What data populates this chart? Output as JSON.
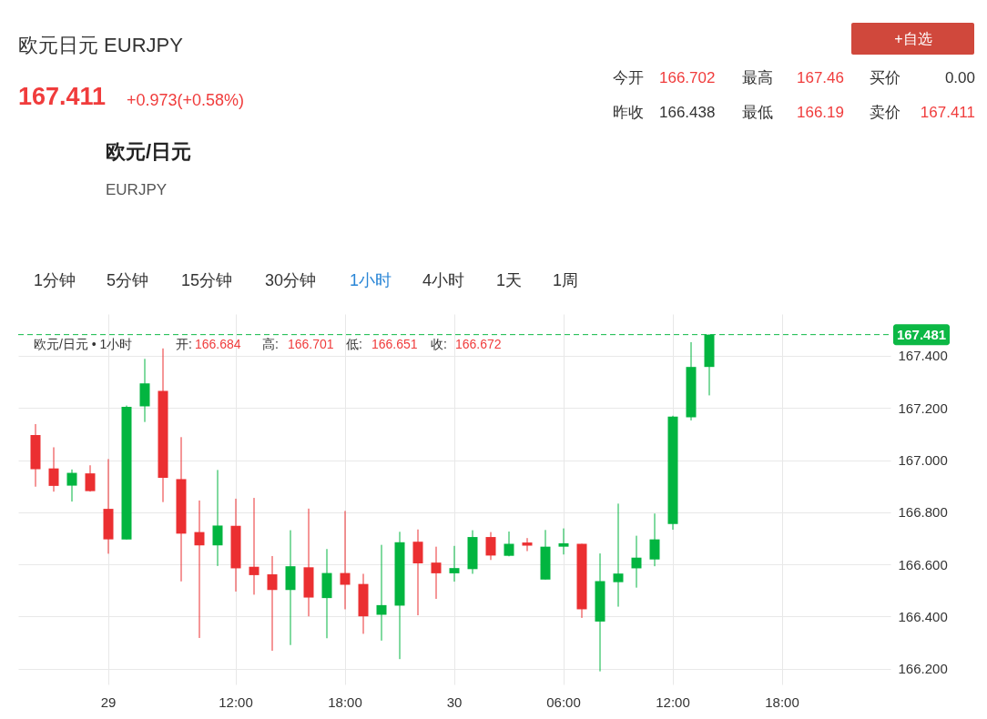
{
  "chart_data": {
    "type": "candlestick",
    "title": "欧元日元 EURJPY",
    "categories": [
      null,
      null,
      null,
      null,
      "29",
      null,
      null,
      null,
      null,
      null,
      null,
      "12:00",
      null,
      null,
      null,
      null,
      null,
      "18:00",
      null,
      null,
      null,
      null,
      null,
      "30",
      null,
      null,
      null,
      null,
      null,
      "06:00",
      null,
      null,
      null,
      null,
      null,
      "12:00",
      null,
      null,
      null,
      null,
      null,
      "18:00",
      null,
      null,
      null,
      null,
      null
    ],
    "ohlc": [
      [
        167.096,
        167.138,
        166.898,
        166.965
      ],
      [
        166.968,
        167.049,
        166.879,
        166.901
      ],
      [
        166.902,
        166.964,
        166.841,
        166.951
      ],
      [
        166.949,
        166.98,
        166.879,
        166.881
      ],
      [
        166.813,
        167.004,
        166.641,
        166.696
      ],
      [
        166.696,
        167.209,
        166.696,
        167.204
      ],
      [
        167.206,
        167.388,
        167.146,
        167.294
      ],
      [
        167.265,
        167.428,
        166.839,
        166.932
      ],
      [
        166.927,
        167.088,
        166.535,
        166.718
      ],
      [
        166.724,
        166.845,
        166.318,
        166.673
      ],
      [
        166.673,
        166.962,
        166.594,
        166.749
      ],
      [
        166.748,
        166.852,
        166.496,
        166.585
      ],
      [
        166.591,
        166.855,
        166.484,
        166.559
      ],
      [
        166.562,
        166.632,
        166.269,
        166.502
      ],
      [
        166.502,
        166.731,
        166.291,
        166.593
      ],
      [
        166.589,
        166.814,
        166.401,
        166.473
      ],
      [
        166.471,
        166.659,
        166.317,
        166.567
      ],
      [
        166.567,
        166.805,
        166.428,
        166.522
      ],
      [
        166.525,
        166.564,
        166.334,
        166.401
      ],
      [
        166.407,
        166.675,
        166.308,
        166.444
      ],
      [
        166.442,
        166.725,
        166.237,
        166.685
      ],
      [
        166.687,
        166.734,
        166.405,
        166.604
      ],
      [
        166.607,
        166.668,
        166.468,
        166.566
      ],
      [
        166.566,
        166.671,
        166.534,
        166.586
      ],
      [
        166.582,
        166.731,
        166.564,
        166.705
      ],
      [
        166.705,
        166.724,
        166.617,
        166.634
      ],
      [
        166.633,
        166.726,
        166.631,
        166.679
      ],
      [
        166.684,
        166.701,
        166.651,
        166.672
      ],
      [
        166.542,
        166.732,
        166.542,
        166.668
      ],
      [
        166.668,
        166.738,
        166.638,
        166.681
      ],
      [
        166.679,
        166.679,
        166.395,
        166.428
      ],
      [
        166.381,
        166.642,
        166.19,
        166.536
      ],
      [
        166.532,
        166.833,
        166.438,
        166.565
      ],
      [
        166.585,
        166.71,
        166.511,
        166.626
      ],
      [
        166.619,
        166.795,
        166.593,
        166.696
      ],
      [
        166.755,
        167.17,
        166.733,
        167.167
      ],
      [
        167.164,
        167.452,
        167.152,
        167.357
      ],
      [
        167.357,
        167.481,
        167.248,
        167.481
      ],
      null,
      null,
      null,
      null,
      null,
      null,
      null,
      null,
      null
    ],
    "colors": [
      "#eb2f31",
      "#eb2f31",
      "#02b540",
      "#eb2f31",
      "#eb2f31",
      "#02b540",
      "#02b540",
      "#eb2f31",
      "#eb2f31",
      "#eb2f31",
      "#02b540",
      "#eb2f31",
      "#eb2f31",
      "#eb2f31",
      "#02b540",
      "#eb2f31",
      "#02b540",
      "#eb2f31",
      "#eb2f31",
      "#02b540",
      "#02b540",
      "#eb2f31",
      "#eb2f31",
      "#02b540",
      "#02b540",
      "#eb2f31",
      "#02b540",
      "#eb2f31",
      "#02b540",
      "#02b540",
      "#eb2f31",
      "#02b540",
      "#02b540",
      "#02b540",
      "#02b540",
      "#02b540",
      "#02b540",
      "#02b540",
      null,
      null,
      null,
      null,
      null,
      null,
      null,
      null,
      null
    ],
    "ylim": [
      166.14,
      167.56
    ],
    "yticks": [
      {
        "value": 166.2,
        "label": "166.200"
      },
      {
        "value": 166.4,
        "label": "166.400"
      },
      {
        "value": 166.6,
        "label": "166.600"
      },
      {
        "value": 166.8,
        "label": "166.800"
      },
      {
        "value": 167.0,
        "label": "167.000"
      },
      {
        "value": 167.2,
        "label": "167.200"
      },
      {
        "value": 167.4,
        "label": "167.400"
      }
    ],
    "grid": true,
    "ref_lines": [
      {
        "axis": "y",
        "value": 167.481,
        "label": "167.481",
        "color": "#0cb845",
        "line_style": "dashed"
      }
    ],
    "annotations": [
      "167.411",
      "+0.973(+0.58%)",
      "+自选",
      "今开",
      "166.702",
      "最高",
      "167.46",
      "买价",
      "0.00",
      "昨收",
      "166.438",
      "最低",
      "166.19",
      "卖价",
      "167.411",
      "欧元/日元",
      "EURJPY",
      "1分钟",
      "5分钟",
      "15分钟",
      "30分钟",
      "1小时",
      "4小时",
      "1天",
      "1周",
      "欧元/日元 • 1小时",
      "开:",
      "166.684",
      "高:",
      "166.701",
      "低:",
      "166.651",
      "收:",
      "166.672"
    ]
  }
}
